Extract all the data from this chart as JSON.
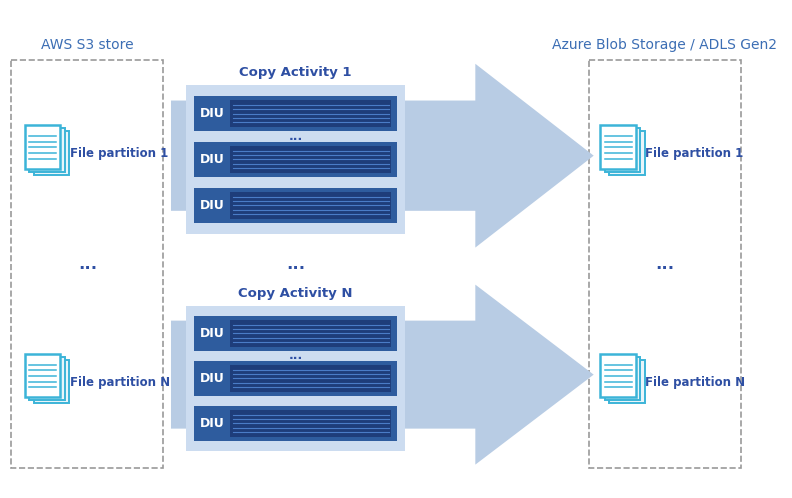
{
  "title_left": "AWS S3 store",
  "title_right": "Azure Blob Storage / ADLS Gen2",
  "copy_activity_1": "Copy Activity 1",
  "copy_activity_n": "Copy Activity N",
  "diu_label": "DIU",
  "dots": "...",
  "file_partition_1": "File partition 1",
  "file_partition_n": "File partition N",
  "bg_color": "#ffffff",
  "box_border_color": "#999999",
  "arrow_fill_color": "#b8cce4",
  "diu_outer_color": "#2e5c9e",
  "diu_inner_color": "#1e3d7a",
  "diu_line_color": "#4a7cc7",
  "panel_bg_color": "#ccdcf0",
  "text_color": "#2e4fa3",
  "title_color": "#3c6eb4",
  "header_color": "#2e4fa3",
  "icon_border_color": "#3cb4d8",
  "icon_fill_color": "#ffffff",
  "figsize": [
    7.92,
    4.98
  ],
  "dpi": 100
}
